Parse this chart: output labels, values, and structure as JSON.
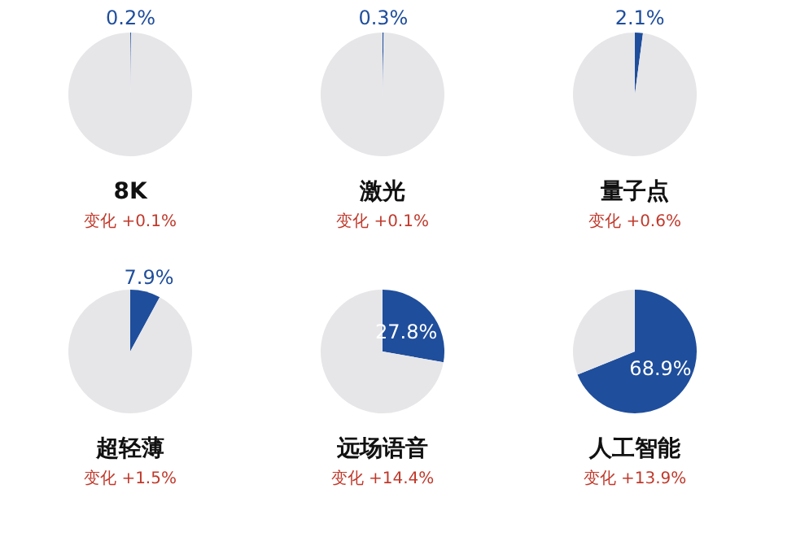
{
  "chart_data": [
    {
      "type": "pie",
      "title": "8K",
      "categories": [
        null,
        null
      ],
      "values": [
        0.2,
        99.8
      ],
      "colors": [
        "#1f4e9c",
        "#e6e6e9"
      ],
      "value_labels": [
        "0.2%",
        null
      ],
      "annotations": [
        "变化 +0.1%"
      ]
    },
    {
      "type": "pie",
      "title": "激光",
      "categories": [
        null,
        null
      ],
      "values": [
        0.3,
        99.7
      ],
      "colors": [
        "#1f4e9c",
        "#e6e6e9"
      ],
      "value_labels": [
        "0.3%",
        null
      ],
      "annotations": [
        "变化 +0.1%"
      ]
    },
    {
      "type": "pie",
      "title": "量子点",
      "categories": [
        null,
        null
      ],
      "values": [
        2.1,
        97.9
      ],
      "colors": [
        "#1f4e9c",
        "#e6e6e9"
      ],
      "value_labels": [
        "2.1%",
        null
      ],
      "annotations": [
        "变化 +0.6%"
      ]
    },
    {
      "type": "pie",
      "title": "超轻薄",
      "categories": [
        null,
        null
      ],
      "values": [
        7.9,
        92.1
      ],
      "colors": [
        "#1f4e9c",
        "#e6e6e9"
      ],
      "value_labels": [
        "7.9%",
        null
      ],
      "annotations": [
        "变化 +1.5%"
      ]
    },
    {
      "type": "pie",
      "title": "远场语音",
      "categories": [
        null,
        null
      ],
      "values": [
        27.8,
        72.2
      ],
      "colors": [
        "#1f4e9c",
        "#e6e6e9"
      ],
      "value_labels": [
        "27.8%",
        null
      ],
      "annotations": [
        "变化 +14.4%"
      ]
    },
    {
      "type": "pie",
      "title": "人工智能",
      "categories": [
        null,
        null
      ],
      "values": [
        68.9,
        31.1
      ],
      "colors": [
        "#1f4e9c",
        "#e6e6e9"
      ],
      "value_labels": [
        "68.9%",
        null
      ],
      "annotations": [
        "变化 +13.9%"
      ]
    }
  ]
}
